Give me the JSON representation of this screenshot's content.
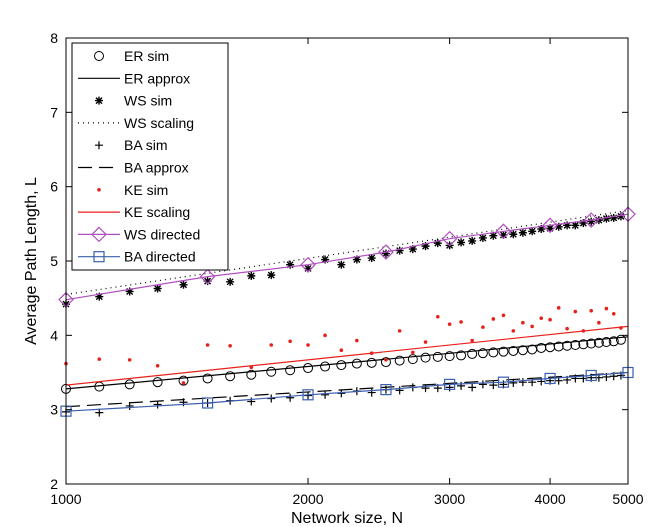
{
  "chart_data": {
    "type": "line",
    "title": "",
    "xlabel": "Network size, N",
    "ylabel": "Average Path Length, L",
    "xscale": "log",
    "xlim": [
      1000,
      5000
    ],
    "ylim": [
      2,
      8
    ],
    "xticks": [
      1000,
      2000,
      3000,
      4000,
      5000
    ],
    "yticks": [
      2,
      3,
      4,
      5,
      6,
      7,
      8
    ],
    "grid": false,
    "legend_position": "top-left",
    "series": [
      {
        "name": "ER sim",
        "kind": "markers",
        "marker": "circle",
        "color": "#000000",
        "x": [
          1000,
          1100,
          1200,
          1300,
          1400,
          1500,
          1600,
          1700,
          1800,
          1900,
          2000,
          2100,
          2200,
          2300,
          2400,
          2500,
          2600,
          2700,
          2800,
          2900,
          3000,
          3100,
          3200,
          3300,
          3400,
          3500,
          3600,
          3700,
          3800,
          3900,
          4000,
          4100,
          4200,
          4300,
          4400,
          4500,
          4600,
          4700,
          4800,
          4900
        ],
        "y": [
          3.28,
          3.31,
          3.34,
          3.37,
          3.39,
          3.42,
          3.45,
          3.47,
          3.51,
          3.53,
          3.56,
          3.58,
          3.6,
          3.62,
          3.63,
          3.64,
          3.66,
          3.68,
          3.7,
          3.71,
          3.72,
          3.73,
          3.75,
          3.76,
          3.77,
          3.78,
          3.79,
          3.8,
          3.81,
          3.83,
          3.84,
          3.85,
          3.86,
          3.87,
          3.88,
          3.89,
          3.9,
          3.91,
          3.92,
          3.94
        ]
      },
      {
        "name": "ER approx",
        "kind": "line",
        "dash": "",
        "color": "#000000",
        "x": [
          1000,
          5000
        ],
        "y": [
          3.28,
          3.98
        ]
      },
      {
        "name": "WS sim",
        "kind": "markers",
        "marker": "asterisk",
        "color": "#000000",
        "x": [
          1000,
          1100,
          1200,
          1300,
          1400,
          1500,
          1600,
          1700,
          1800,
          1900,
          2000,
          2100,
          2200,
          2300,
          2400,
          2500,
          2600,
          2700,
          2800,
          2900,
          3000,
          3100,
          3200,
          3300,
          3400,
          3500,
          3600,
          3700,
          3800,
          3900,
          4000,
          4100,
          4200,
          4300,
          4400,
          4500,
          4600,
          4700,
          4800,
          4900
        ],
        "y": [
          4.42,
          4.52,
          4.59,
          4.63,
          4.68,
          4.73,
          4.72,
          4.8,
          4.81,
          4.95,
          4.9,
          5.02,
          4.95,
          5.02,
          5.04,
          5.1,
          5.14,
          5.16,
          5.2,
          5.24,
          5.21,
          5.25,
          5.27,
          5.31,
          5.34,
          5.35,
          5.36,
          5.38,
          5.4,
          5.43,
          5.44,
          5.46,
          5.48,
          5.48,
          5.51,
          5.53,
          5.55,
          5.57,
          5.58,
          5.6
        ]
      },
      {
        "name": "WS scaling",
        "kind": "line",
        "dash": "1,4",
        "color": "#000000",
        "x": [
          1000,
          5000
        ],
        "y": [
          4.55,
          5.68
        ]
      },
      {
        "name": "BA sim",
        "kind": "markers",
        "marker": "plus",
        "color": "#000000",
        "x": [
          1000,
          1100,
          1200,
          1300,
          1400,
          1500,
          1600,
          1700,
          1800,
          1900,
          2000,
          2100,
          2200,
          2300,
          2400,
          2500,
          2600,
          2700,
          2800,
          2900,
          3000,
          3100,
          3200,
          3300,
          3400,
          3500,
          3600,
          3700,
          3800,
          3900,
          4000,
          4100,
          4200,
          4300,
          4400,
          4500,
          4600,
          4700,
          4800,
          4900
        ],
        "y": [
          2.97,
          2.96,
          3.05,
          3.07,
          3.1,
          3.09,
          3.12,
          3.11,
          3.15,
          3.16,
          3.19,
          3.2,
          3.22,
          3.25,
          3.23,
          3.27,
          3.26,
          3.3,
          3.29,
          3.29,
          3.3,
          3.32,
          3.3,
          3.34,
          3.33,
          3.34,
          3.36,
          3.37,
          3.37,
          3.38,
          3.39,
          3.39,
          3.4,
          3.42,
          3.42,
          3.43,
          3.43,
          3.44,
          3.45,
          3.46
        ]
      },
      {
        "name": "BA approx",
        "kind": "line",
        "dash": "14,7",
        "color": "#000000",
        "x": [
          1000,
          5000
        ],
        "y": [
          3.04,
          3.5
        ]
      },
      {
        "name": "KE sim",
        "kind": "markers",
        "marker": "dot",
        "color": "#e8201c",
        "x": [
          1000,
          1100,
          1200,
          1300,
          1400,
          1500,
          1600,
          1700,
          1800,
          1900,
          2000,
          2100,
          2200,
          2300,
          2400,
          2500,
          2600,
          2700,
          2800,
          2900,
          3000,
          3100,
          3200,
          3300,
          3400,
          3500,
          3600,
          3700,
          3800,
          3900,
          4000,
          4100,
          4200,
          4300,
          4400,
          4500,
          4600,
          4700,
          4800,
          4900
        ],
        "y": [
          3.62,
          3.68,
          3.67,
          3.59,
          3.36,
          3.87,
          3.86,
          3.57,
          3.87,
          3.92,
          3.87,
          4.0,
          3.8,
          3.93,
          3.76,
          3.67,
          4.06,
          3.77,
          3.91,
          4.25,
          4.15,
          4.18,
          3.93,
          4.11,
          4.22,
          4.27,
          4.06,
          4.17,
          4.12,
          4.23,
          4.21,
          4.37,
          4.09,
          4.32,
          4.06,
          4.33,
          4.17,
          4.36,
          4.29,
          4.1
        ]
      },
      {
        "name": "KE scaling",
        "kind": "line",
        "dash": "",
        "color": "#e8201c",
        "x": [
          1000,
          5000
        ],
        "y": [
          3.33,
          4.12
        ]
      },
      {
        "name": "WS directed",
        "kind": "line+markers",
        "marker": "diamond",
        "dash": "",
        "color": "#b04fbf",
        "x": [
          1000,
          1500,
          2000,
          2500,
          3000,
          3500,
          4000,
          4500,
          5000
        ],
        "y": [
          4.48,
          4.79,
          4.95,
          5.12,
          5.3,
          5.4,
          5.48,
          5.55,
          5.63
        ]
      },
      {
        "name": "BA directed",
        "kind": "line+markers",
        "marker": "square",
        "dash": "",
        "color": "#3a5fae",
        "x": [
          1000,
          1500,
          2000,
          2500,
          3000,
          3500,
          4000,
          4500,
          5000
        ],
        "y": [
          2.98,
          3.09,
          3.2,
          3.27,
          3.34,
          3.37,
          3.42,
          3.46,
          3.5
        ]
      }
    ]
  }
}
